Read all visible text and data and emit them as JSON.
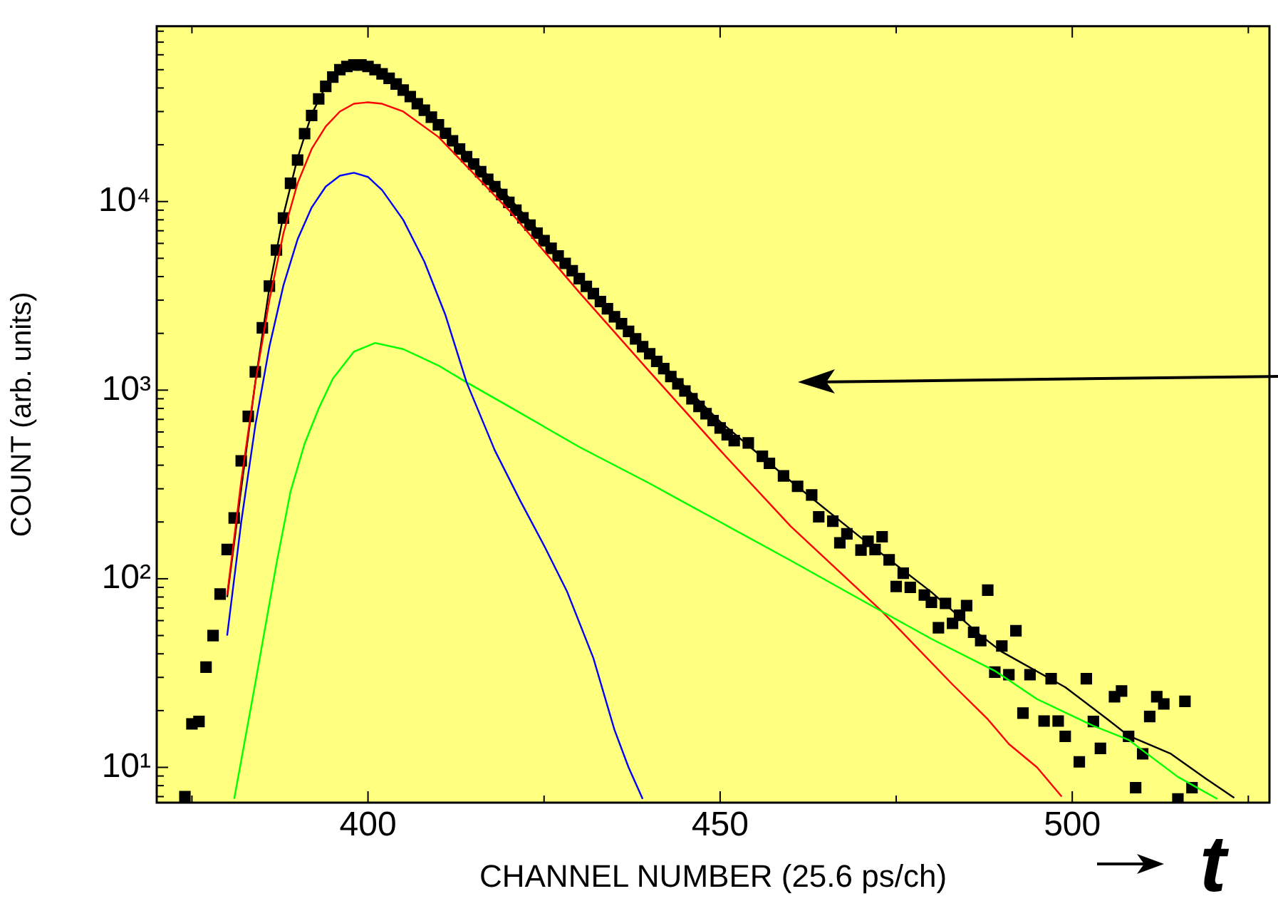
{
  "chart_data": {
    "type": "line",
    "xlabel": "CHANNEL NUMBER (25.6 ps/ch)",
    "ylabel": "COUNT (arb. units)",
    "annotations": [
      "t"
    ],
    "xlim": [
      370,
      528
    ],
    "ylim": [
      6.5,
      85000
    ],
    "log": "y",
    "grid": false,
    "legend": false,
    "xticks": [
      {
        "value": 375,
        "label": null
      },
      400,
      {
        "value": 425,
        "label": null
      },
      450,
      {
        "value": 475,
        "label": null
      },
      500,
      {
        "value": 525,
        "label": null
      }
    ],
    "yticks": [
      {
        "value": 7,
        "label": null
      },
      {
        "value": 8,
        "label": null
      },
      {
        "value": 9,
        "label": null
      },
      {
        "value": 10,
        "label": "10¹"
      },
      {
        "value": 20,
        "label": null
      },
      {
        "value": 30,
        "label": null
      },
      {
        "value": 40,
        "label": null
      },
      {
        "value": 50,
        "label": null
      },
      {
        "value": 60,
        "label": null
      },
      {
        "value": 70,
        "label": null
      },
      {
        "value": 80,
        "label": null
      },
      {
        "value": 90,
        "label": null
      },
      {
        "value": 100,
        "label": "10²"
      },
      {
        "value": 200,
        "label": null
      },
      {
        "value": 300,
        "label": null
      },
      {
        "value": 400,
        "label": null
      },
      {
        "value": 500,
        "label": null
      },
      {
        "value": 600,
        "label": null
      },
      {
        "value": 700,
        "label": null
      },
      {
        "value": 800,
        "label": null
      },
      {
        "value": 900,
        "label": null
      },
      {
        "value": 1000,
        "label": "10³"
      },
      {
        "value": 2000,
        "label": null
      },
      {
        "value": 3000,
        "label": null
      },
      {
        "value": 4000,
        "label": null
      },
      {
        "value": 5000,
        "label": null
      },
      {
        "value": 6000,
        "label": null
      },
      {
        "value": 7000,
        "label": null
      },
      {
        "value": 8000,
        "label": null
      },
      {
        "value": 9000,
        "label": null
      },
      {
        "value": 10000,
        "label": "10⁴"
      },
      {
        "value": 20000,
        "label": null
      },
      {
        "value": 30000,
        "label": null
      },
      {
        "value": 40000,
        "label": null
      },
      {
        "value": 50000,
        "label": null
      },
      {
        "value": 60000,
        "label": null
      },
      {
        "value": 70000,
        "label": null
      },
      {
        "value": 80000,
        "label": null
      }
    ],
    "series": [
      {
        "color": "#0000ff",
        "marker": "none",
        "x": [
          380,
          382,
          384,
          386,
          388,
          390,
          392,
          394,
          396,
          398,
          400,
          402,
          405,
          408,
          411,
          414,
          418,
          421.6,
          425,
          428.3,
          432,
          435,
          437,
          439
        ],
        "values": [
          50,
          200,
          650,
          1700,
          3600,
          6300,
          9300,
          12000,
          13700,
          14200,
          13500,
          11500,
          8000,
          4800,
          2500,
          1100,
          480,
          260,
          150,
          85,
          38,
          15.8,
          10,
          6.8
        ]
      },
      {
        "color": "#00ff00",
        "marker": "none",
        "x": [
          381,
          384,
          387,
          389,
          391,
          393,
          395,
          398,
          401,
          405,
          410,
          414,
          420,
          430,
          440,
          444.4,
          450,
          460,
          473,
          480,
          489,
          495,
          503,
          508,
          515,
          520.6
        ],
        "values": [
          6.8,
          28,
          120,
          290,
          520,
          800,
          1150,
          1600,
          1780,
          1650,
          1350,
          1100,
          820,
          500,
          320,
          260,
          200,
          125,
          67,
          48,
          32.5,
          23,
          16.6,
          14,
          8.9,
          6.8
        ]
      },
      {
        "color": "#ff0000",
        "marker": "none",
        "x": [
          380,
          382,
          384,
          386,
          388,
          390,
          392,
          394,
          396,
          398,
          400,
          402,
          405,
          410,
          420,
          430,
          440,
          450,
          460,
          473,
          483,
          488,
          491,
          495,
          498.5
        ],
        "values": [
          82,
          330,
          1100,
          3000,
          6800,
          12500,
          19000,
          25000,
          30000,
          33000,
          33600,
          33000,
          30000,
          22000,
          9000,
          3300,
          1250,
          480,
          190,
          67,
          27.5,
          18,
          13.3,
          10,
          7
        ]
      },
      {
        "color": "#000000",
        "marker": "none",
        "x": [
          380,
          382,
          384,
          386,
          388,
          390,
          392,
          394,
          396,
          398,
          400,
          405,
          410,
          420,
          430,
          440,
          450,
          460,
          470,
          480,
          487,
          490,
          499,
          505,
          508,
          514,
          519,
          523
        ],
        "values": [
          80,
          300,
          1100,
          3500,
          8500,
          17000,
          29000,
          41000,
          49000,
          52500,
          52500,
          40000,
          26000,
          10500,
          4000,
          1600,
          680,
          330,
          165,
          85,
          50,
          41,
          26.6,
          18,
          14.7,
          11.8,
          8.7,
          6.9
        ]
      },
      {
        "type": "scatter",
        "color": "#000000",
        "marker": "square",
        "x": [
          374,
          375,
          376,
          377,
          378,
          379,
          380,
          381,
          382,
          383,
          384,
          385,
          386,
          387,
          388,
          389,
          390,
          391,
          392,
          393,
          394,
          395,
          396,
          397,
          398,
          399,
          400,
          401,
          402,
          403,
          404,
          405,
          406,
          407,
          408,
          409,
          410,
          411,
          412,
          413,
          414,
          415,
          416,
          417,
          418,
          419,
          420,
          421,
          422,
          423,
          424,
          425,
          426,
          427,
          428,
          429,
          430,
          431,
          432,
          433,
          434,
          435,
          436,
          437,
          438,
          439,
          440,
          441,
          442,
          443,
          444,
          445,
          446,
          447,
          448,
          449,
          450,
          451,
          452,
          454,
          456,
          457,
          459,
          461,
          463,
          464,
          466,
          467,
          468,
          470,
          471,
          472,
          473,
          474,
          475,
          476,
          477,
          479,
          480,
          481,
          482,
          483,
          484,
          485,
          486,
          487,
          488,
          489,
          490,
          491,
          492,
          493,
          494,
          496,
          497,
          498,
          499,
          501,
          502,
          503,
          504,
          506,
          507,
          508,
          509,
          510,
          511,
          512,
          513,
          515,
          516,
          517
        ],
        "values": [
          7,
          17,
          17.5,
          34,
          50,
          83,
          143,
          210,
          422,
          726,
          1250,
          2140,
          3560,
          5530,
          8170,
          12500,
          16600,
          22900,
          28600,
          35000,
          40800,
          45700,
          50000,
          52000,
          53000,
          53000,
          52000,
          50000,
          47500,
          45000,
          42000,
          39000,
          36000,
          33000,
          30500,
          28000,
          25500,
          23000,
          21000,
          19000,
          17300,
          15800,
          14400,
          13100,
          12000,
          10900,
          9900,
          9000,
          8200,
          7500,
          6800,
          6200,
          5650,
          5150,
          4700,
          4300,
          3900,
          3550,
          3250,
          2950,
          2700,
          2450,
          2250,
          2050,
          1870,
          1700,
          1560,
          1420,
          1300,
          1180,
          1080,
          990,
          900,
          820,
          750,
          690,
          630,
          580,
          540,
          525,
          446,
          409,
          351,
          309,
          278,
          213,
          202,
          155,
          173,
          142,
          158,
          143,
          167,
          126,
          91,
          107,
          90,
          82,
          75,
          55,
          74,
          58,
          64,
          72,
          52,
          47,
          87,
          32,
          44,
          31,
          53,
          19.4,
          31,
          17.6,
          29.5,
          17.6,
          14.6,
          10.7,
          29.5,
          17.5,
          12.6,
          23.7,
          25.4,
          14.6,
          7.8,
          11.8,
          18.6,
          23.7,
          21.7,
          6.8,
          22.4,
          7.8
        ]
      }
    ]
  }
}
